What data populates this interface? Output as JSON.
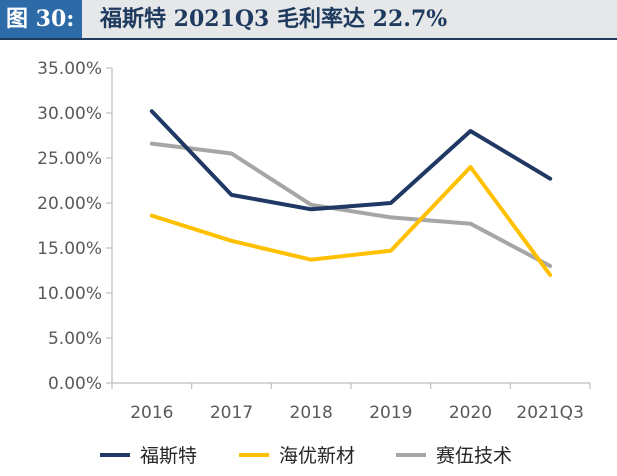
{
  "figure": {
    "label": "图 30:",
    "title": "福斯特 2021Q3 毛利率达 22.7%"
  },
  "chart_data": {
    "type": "line",
    "title": "福斯特 2021Q3 毛利率达 22.7%",
    "categories": [
      "2016",
      "2017",
      "2018",
      "2019",
      "2020",
      "2021Q3"
    ],
    "y_ticks": [
      "0.00%",
      "5.00%",
      "10.00%",
      "15.00%",
      "20.00%",
      "25.00%",
      "30.00%",
      "35.00%"
    ],
    "ylim": [
      0,
      35
    ],
    "grid": false,
    "legend_position": "bottom",
    "series": [
      {
        "name": "福斯特",
        "color": "#1f3864",
        "values": [
          30.2,
          20.9,
          19.3,
          20.0,
          28.0,
          22.7
        ]
      },
      {
        "name": "海优新材",
        "color": "#ffc000",
        "values": [
          18.6,
          15.8,
          13.7,
          14.7,
          24.0,
          12.0
        ]
      },
      {
        "name": "赛伍技术",
        "color": "#a6a6a6",
        "values": [
          26.6,
          25.5,
          19.8,
          18.4,
          17.7,
          13.0
        ]
      }
    ]
  }
}
